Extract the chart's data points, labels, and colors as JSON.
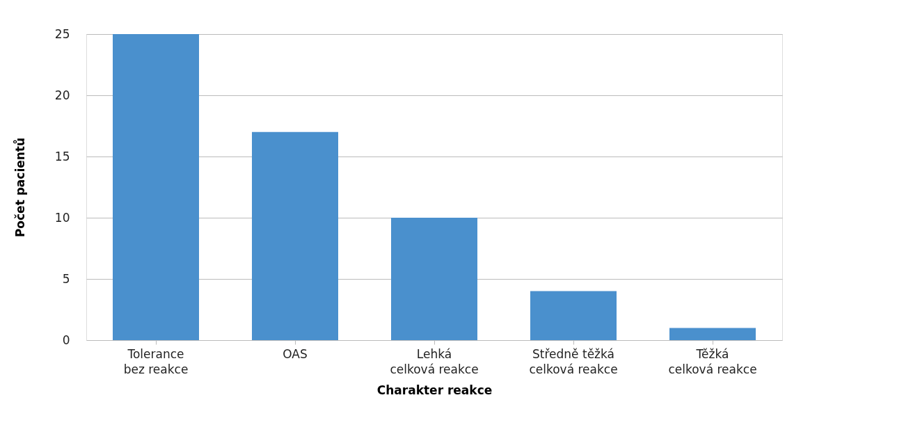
{
  "chart_data": {
    "type": "bar",
    "categories": [
      "Tolerance\nbez reakce",
      "OAS",
      "Lehká\ncelková reakce",
      "Středně těžká\ncelková reakce",
      "Těžká\ncelková reakce"
    ],
    "values": [
      25,
      17,
      10,
      4,
      1
    ],
    "color": "#4a90cd",
    "xlabel": "Charakter reakce",
    "ylabel": "Počet pacientů",
    "ylim": [
      0,
      25
    ],
    "yticks": [
      0,
      5,
      10,
      15,
      20,
      25
    ],
    "grid": "y"
  }
}
